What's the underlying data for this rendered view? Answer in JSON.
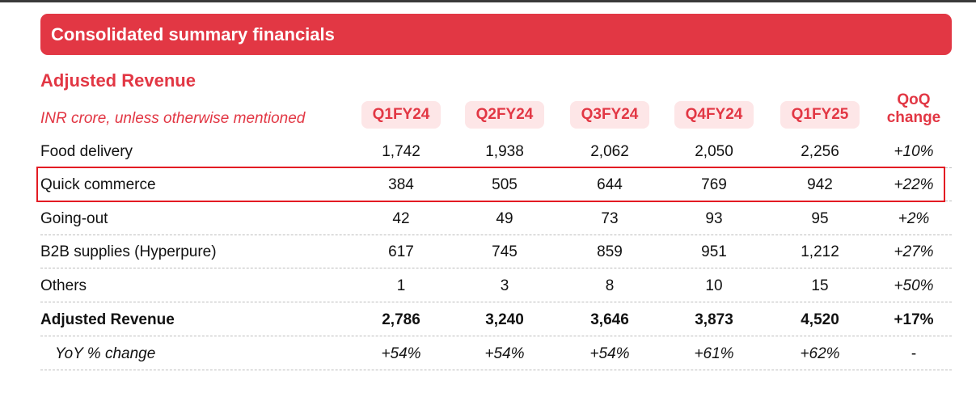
{
  "banner_title": "Consolidated summary financials",
  "section_title": "Adjusted Revenue",
  "units_note": "INR crore, unless otherwise mentioned",
  "quarters": [
    "Q1FY24",
    "Q2FY24",
    "Q3FY24",
    "Q4FY24",
    "Q1FY25"
  ],
  "change_header": [
    "QoQ",
    "change"
  ],
  "rows": [
    {
      "label": "Food delivery",
      "values": [
        "1,742",
        "1,938",
        "2,062",
        "2,050",
        "2,256"
      ],
      "change": "+10%"
    },
    {
      "label": "Quick commerce",
      "values": [
        "384",
        "505",
        "644",
        "769",
        "942"
      ],
      "change": "+22%"
    },
    {
      "label": "Going-out",
      "values": [
        "42",
        "49",
        "73",
        "93",
        "95"
      ],
      "change": "+2%"
    },
    {
      "label": "B2B supplies (Hyperpure)",
      "values": [
        "617",
        "745",
        "859",
        "951",
        "1,212"
      ],
      "change": "+27%"
    },
    {
      "label": "Others",
      "values": [
        "1",
        "3",
        "8",
        "10",
        "15"
      ],
      "change": "+50%"
    },
    {
      "label": "Adjusted Revenue",
      "values": [
        "2,786",
        "3,240",
        "3,646",
        "3,873",
        "4,520"
      ],
      "change": "+17%"
    },
    {
      "label": "YoY % change",
      "values": [
        "+54%",
        "+54%",
        "+54%",
        "+61%",
        "+62%"
      ],
      "change": "-"
    }
  ],
  "colors": {
    "accent": "#e23744",
    "pill_bg": "#fde6e7",
    "highlight_border": "#e31b23"
  }
}
